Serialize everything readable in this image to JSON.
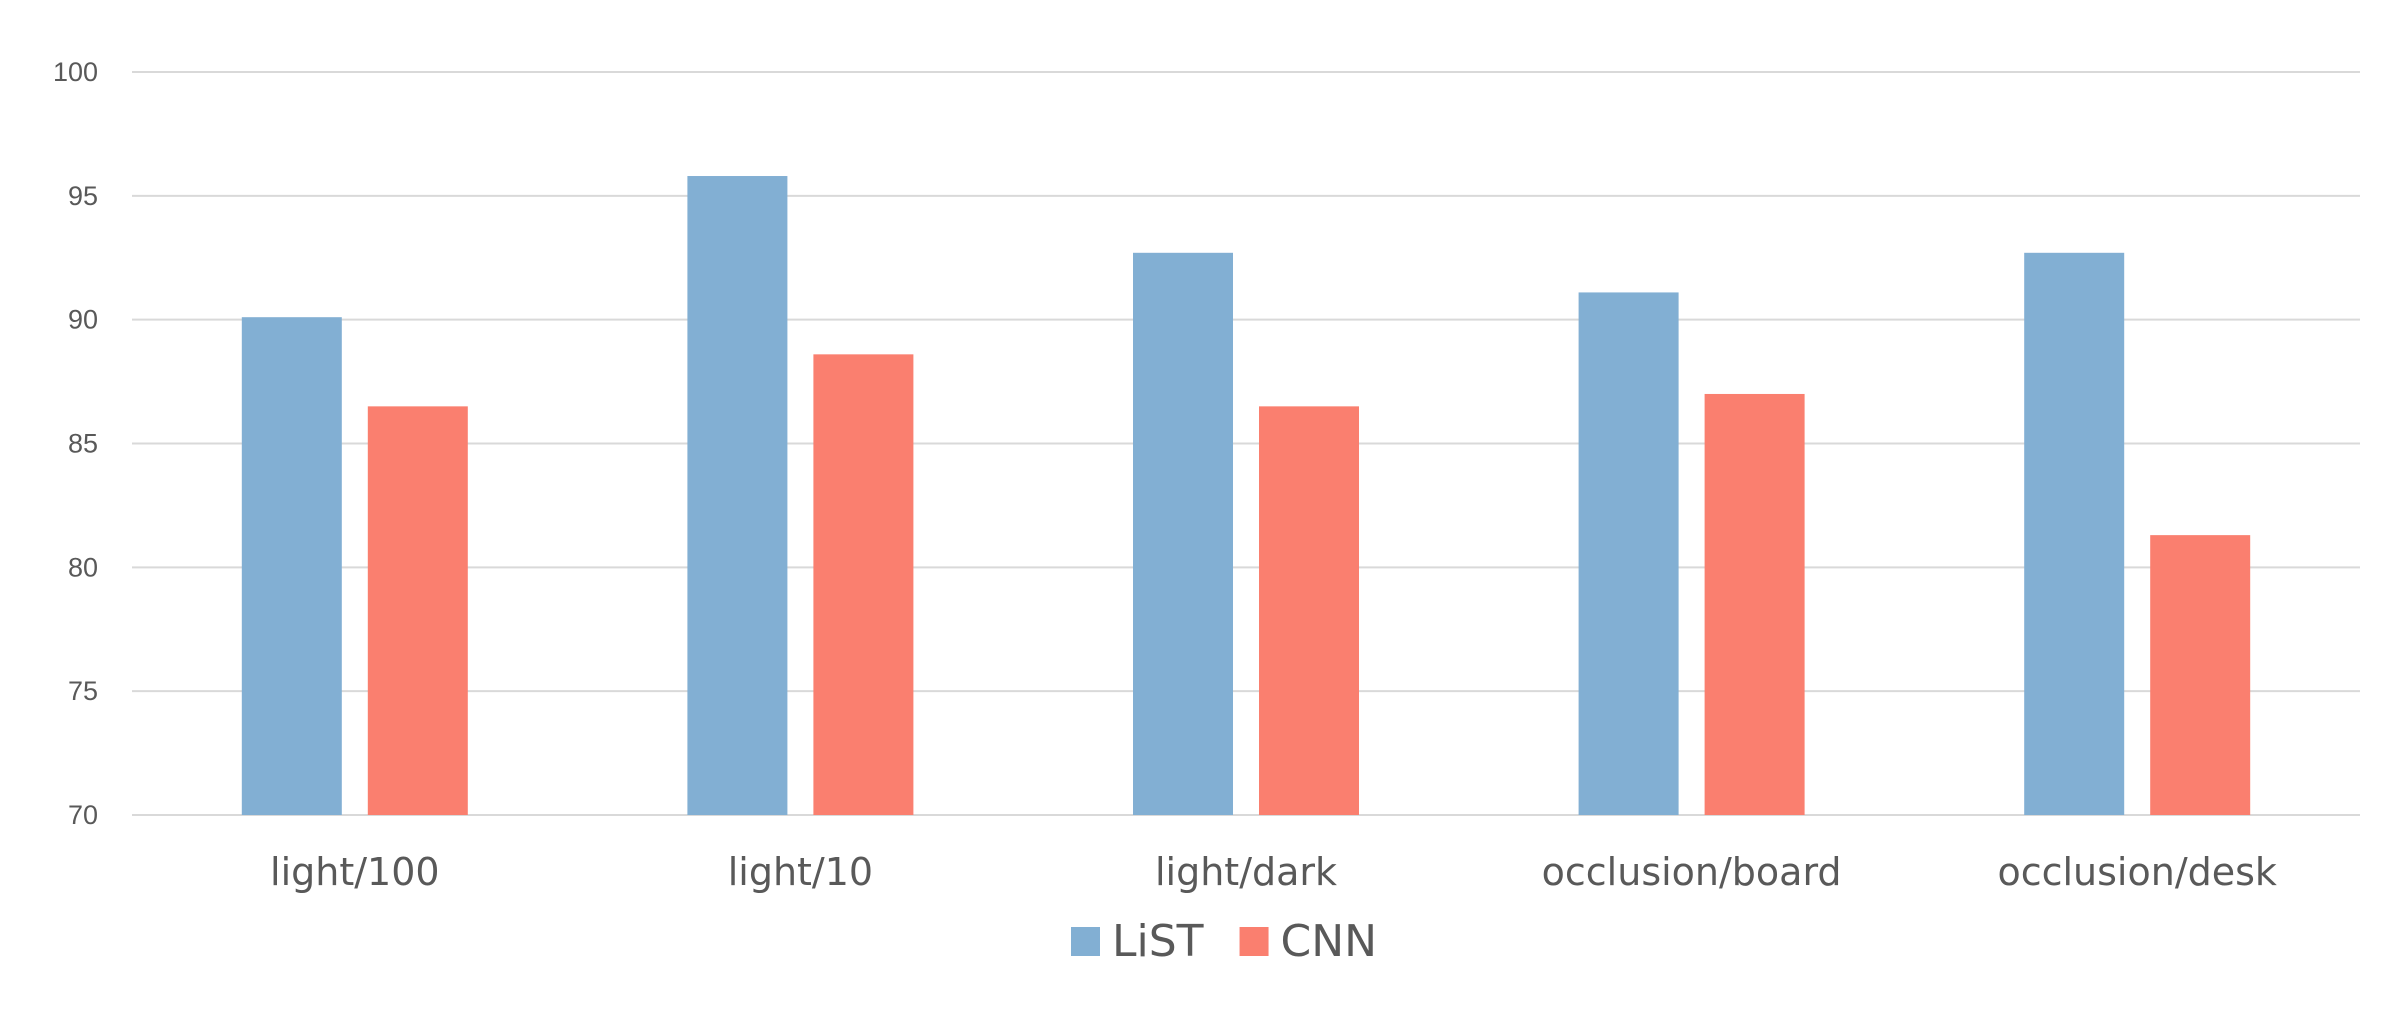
{
  "chart_data": {
    "type": "bar",
    "title": "",
    "xlabel": "",
    "ylabel": "",
    "categories": [
      "light/100",
      "light/10",
      "light/dark",
      "occlusion/board",
      "occlusion/desk"
    ],
    "series": [
      {
        "name": "LiST",
        "values": [
          90.1,
          95.8,
          92.7,
          91.1,
          92.7
        ],
        "color": "#82AFD3"
      },
      {
        "name": "CNN",
        "values": [
          86.5,
          88.6,
          86.5,
          87.0,
          81.3
        ],
        "color": "#FA7F6F"
      }
    ],
    "ylim": [
      70,
      100
    ],
    "yticks": [
      70,
      75,
      80,
      85,
      90,
      95,
      100
    ],
    "grid": true,
    "legend": "bottom-center"
  }
}
